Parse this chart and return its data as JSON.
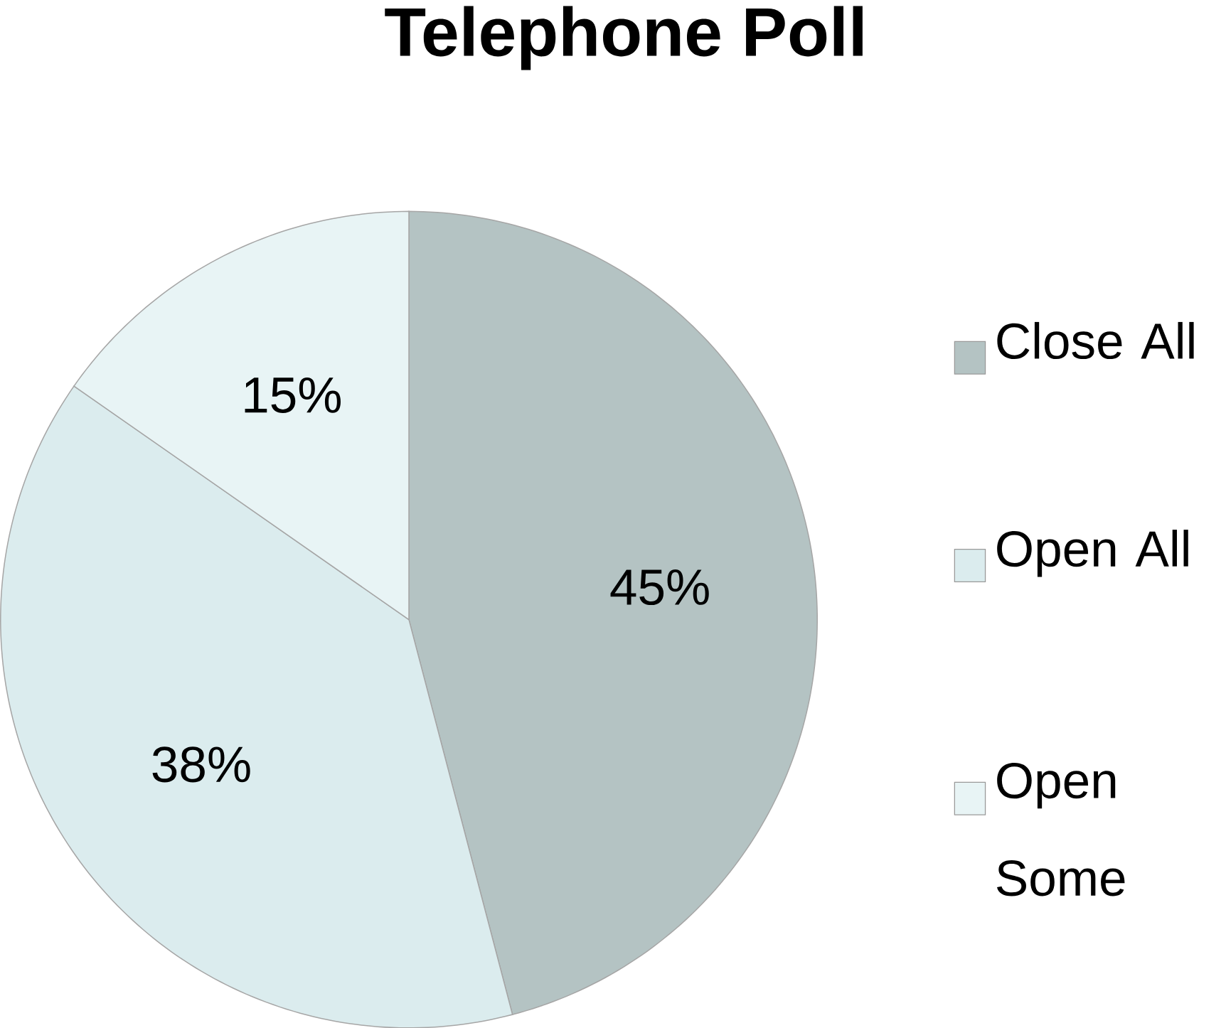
{
  "chart_data": {
    "type": "pie",
    "title": "Telephone Poll",
    "categories": [
      "Close All",
      "Open All",
      "Open Some"
    ],
    "values": [
      45,
      38,
      15
    ],
    "value_labels": [
      "45%",
      "38%",
      "15%"
    ],
    "colors": [
      "#b4c3c3",
      "#dbecee",
      "#e8f4f5"
    ],
    "legend": "right"
  }
}
